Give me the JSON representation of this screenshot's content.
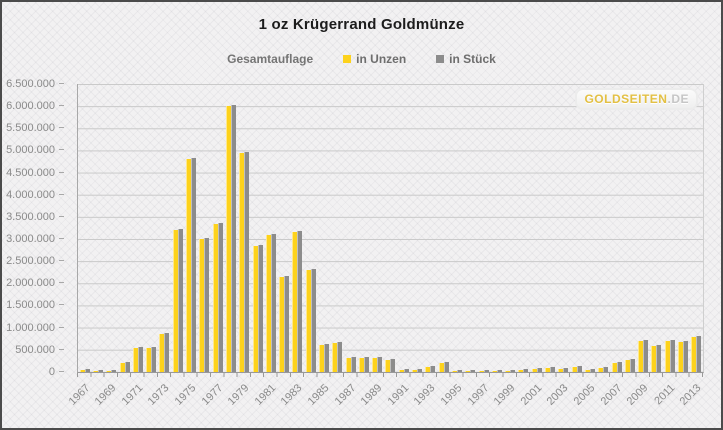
{
  "title": "1 oz Krügerrand Goldmünze",
  "legend": {
    "label": "Gesamtauflage",
    "series": [
      {
        "name": "in Unzen",
        "color": "#FDD21C"
      },
      {
        "name": "in Stück",
        "color": "#8C8C8C"
      }
    ]
  },
  "watermark": {
    "text_gold": "GOLDSEITEN",
    "text_gray": ".DE"
  },
  "chart_data": {
    "type": "bar",
    "title": "1 oz Krügerrand Goldmünze",
    "legend_title": "Gesamtauflage",
    "legend_position": "top",
    "grid": true,
    "ylim": [
      0,
      6500000
    ],
    "y_tick_step": 500000,
    "y_tick_labels_top_to_bottom": [
      "6.500.000",
      "6.000.000",
      "5.500.000",
      "5.000.000",
      "4.500.000",
      "4.000.000",
      "3.500.000",
      "3.000.000",
      "2.500.000",
      "2.000.000",
      "1.500.000",
      "1.000.000",
      "500.000",
      "0"
    ],
    "x_tick_labels": [
      "1967",
      "1969",
      "1971",
      "1973",
      "1975",
      "1977",
      "1979",
      "1981",
      "1983",
      "1985",
      "1987",
      "1989",
      "1991",
      "1993",
      "1995",
      "1997",
      "1999",
      "2001",
      "2003",
      "2005",
      "2007",
      "2009",
      "2011",
      "2013"
    ],
    "categories": [
      "1967",
      "1968",
      "1969",
      "1970",
      "1971",
      "1972",
      "1973",
      "1974",
      "1975",
      "1976",
      "1977",
      "1978",
      "1979",
      "1980",
      "1981",
      "1982",
      "1983",
      "1984",
      "1985",
      "1986",
      "1987",
      "1988",
      "1989",
      "1990",
      "1991",
      "1992",
      "1993",
      "1994",
      "1995",
      "1996",
      "1997",
      "1998",
      "1999",
      "2000",
      "2001",
      "2002",
      "2003",
      "2004",
      "2005",
      "2006",
      "2007",
      "2008",
      "2009",
      "2010",
      "2011",
      "2012",
      "2013"
    ],
    "series": [
      {
        "name": "in Unzen",
        "color": "#FDD21C",
        "highlight": "#FFE98C",
        "values": [
          40000,
          20000,
          20000,
          210000,
          550000,
          540000,
          860000,
          3200000,
          4800000,
          3000000,
          3330000,
          6010000,
          4940000,
          2850000,
          3100000,
          2150000,
          3150000,
          2300000,
          600000,
          650000,
          320000,
          320000,
          320000,
          270000,
          50000,
          50000,
          120000,
          210000,
          20000,
          25000,
          15000,
          25000,
          25000,
          35000,
          70000,
          100000,
          70000,
          120000,
          35000,
          100000,
          210000,
          280000,
          700000,
          580000,
          690000,
          680000,
          800000
        ]
      },
      {
        "name": "in Stück",
        "color": "#8C8C8C",
        "highlight": "#BFBFBF",
        "values": [
          40000,
          20000,
          20000,
          210000,
          550000,
          540000,
          860000,
          3200000,
          4800000,
          3000000,
          3330000,
          6010000,
          4940000,
          2850000,
          3100000,
          2150000,
          3150000,
          2300000,
          600000,
          650000,
          320000,
          320000,
          320000,
          270000,
          50000,
          50000,
          120000,
          210000,
          20000,
          25000,
          15000,
          25000,
          25000,
          35000,
          70000,
          100000,
          70000,
          120000,
          35000,
          100000,
          210000,
          280000,
          700000,
          580000,
          690000,
          680000,
          800000
        ]
      }
    ]
  }
}
